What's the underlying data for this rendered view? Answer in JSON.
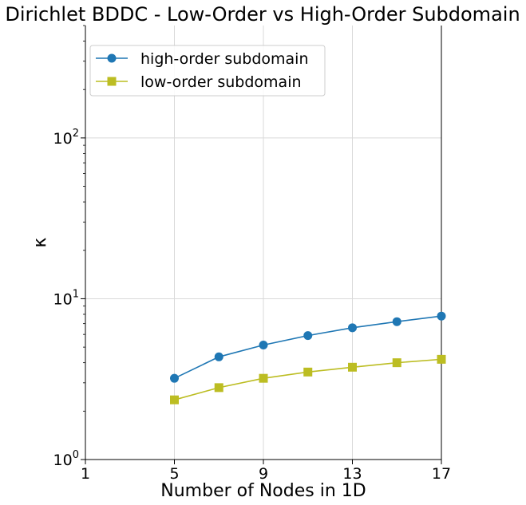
{
  "chart_data": {
    "type": "line",
    "title": "Dirichlet BDDC - Low-Order vs High-Order Subdomain",
    "xlabel": "Number of Nodes in 1D",
    "ylabel": "κ",
    "xlim": [
      1,
      17
    ],
    "ylim": [
      1,
      500
    ],
    "yscale": "log",
    "grid": true,
    "legend_position": "top-left",
    "x_ticks": [
      1,
      5,
      9,
      13,
      17
    ],
    "y_ticks": [
      {
        "value": 1,
        "base": "10",
        "exp": "0"
      },
      {
        "value": 10,
        "base": "10",
        "exp": "1"
      },
      {
        "value": 100,
        "base": "10",
        "exp": "2"
      }
    ],
    "series": [
      {
        "name": "high-order subdomain",
        "color": "#1f77b4",
        "marker": "circle",
        "x": [
          5,
          7,
          9,
          11,
          13,
          15,
          17
        ],
        "y": [
          3.2,
          4.35,
          5.15,
          5.9,
          6.6,
          7.2,
          7.8
        ]
      },
      {
        "name": "low-order subdomain",
        "color": "#bcbd22",
        "marker": "square",
        "x": [
          5,
          7,
          9,
          11,
          13,
          15,
          17
        ],
        "y": [
          2.35,
          2.8,
          3.2,
          3.5,
          3.75,
          4.0,
          4.2
        ]
      }
    ]
  }
}
